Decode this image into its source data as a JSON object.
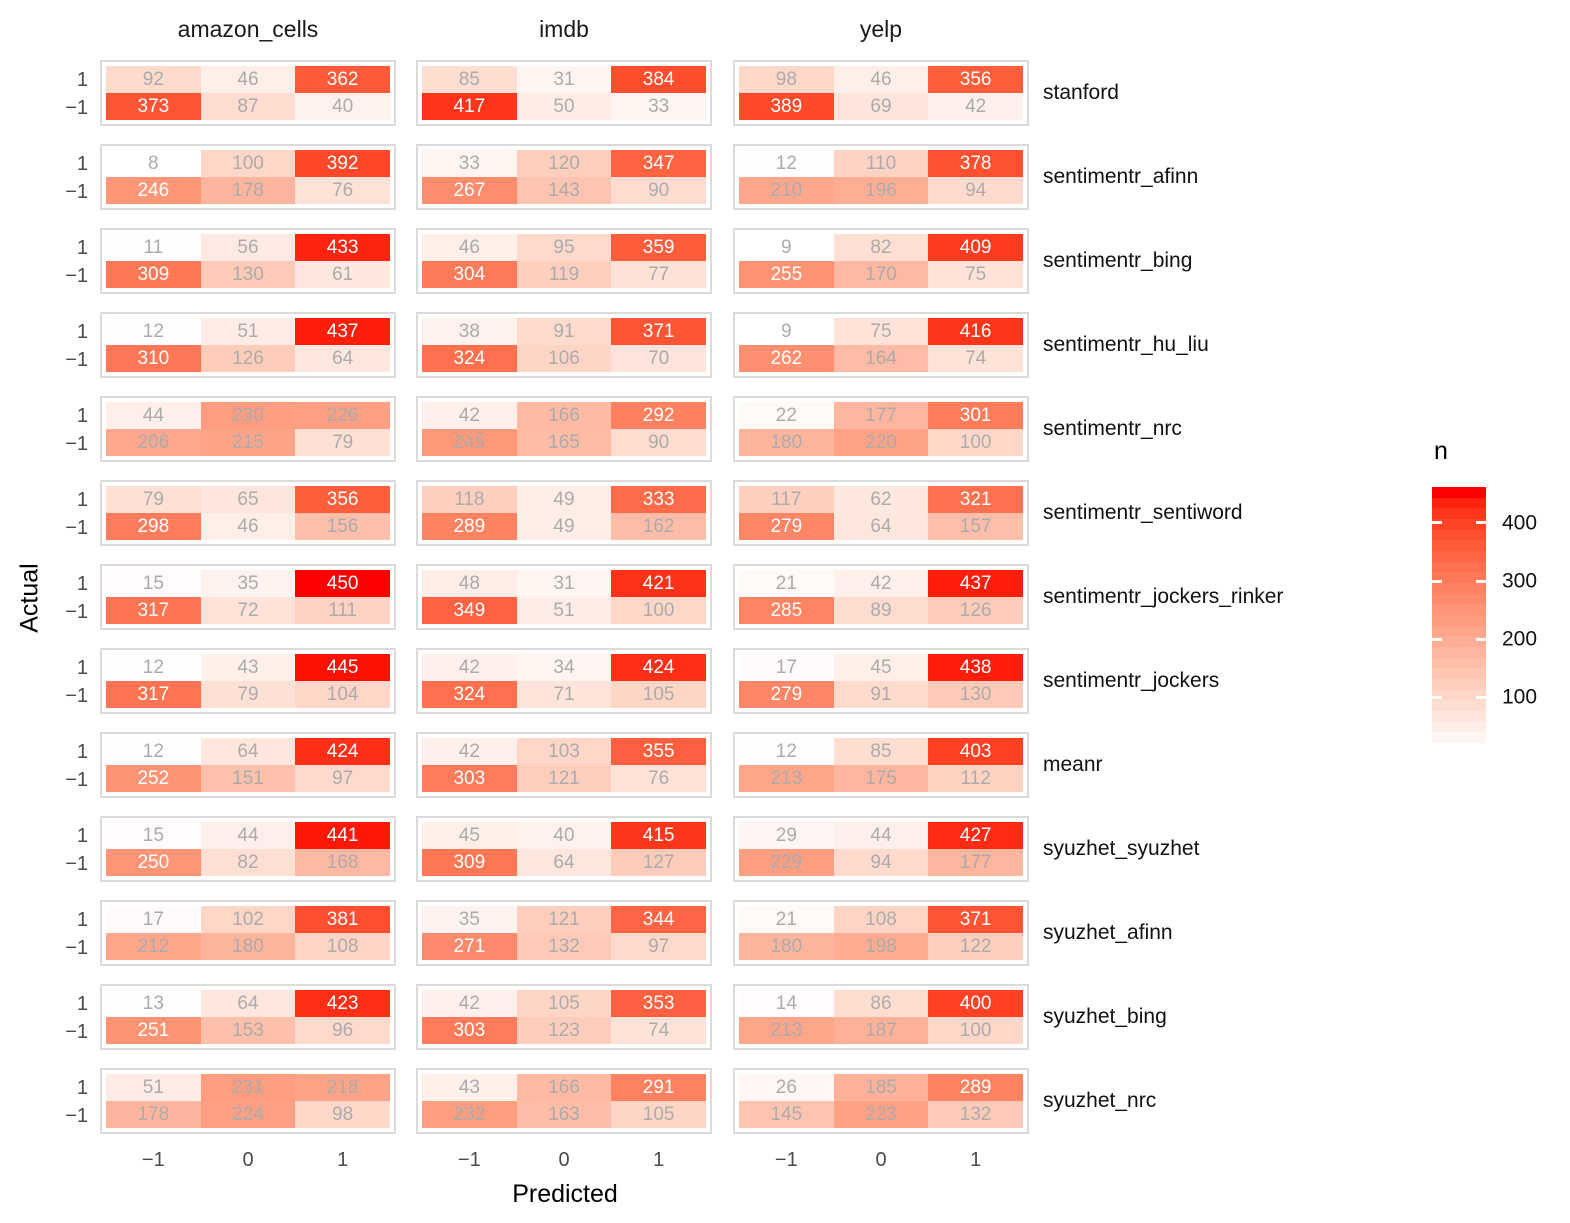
{
  "figure": {
    "x_axis_title": "Predicted",
    "y_axis_title": "Actual",
    "legend_title": "n"
  },
  "axes": {
    "x_ticks": [
      "−1",
      "0",
      "1"
    ],
    "y_ticks": [
      "1",
      "−1"
    ]
  },
  "legend": {
    "title": "n",
    "tick_labels": [
      "400",
      "300",
      "200",
      "100"
    ],
    "tick_values": [
      400,
      300,
      200,
      100
    ],
    "low_color": "#FFFFFF",
    "high_color": "#FF0000"
  },
  "colors": {
    "panel_border": "#DBDBDB",
    "cell_text_gray": "#ABABAB",
    "cell_text_on_dark": "#FFFFFF",
    "tick_text": "#4A4A4A",
    "label_text": "#1A1A1A"
  },
  "chart_data": {
    "type": "heatmap",
    "title": "",
    "xlabel": "Predicted",
    "ylabel": "Actual",
    "fill_legend": "n",
    "legend_ticks": [
      100,
      200,
      300,
      400
    ],
    "fill_domain": [
      8,
      450
    ],
    "facet_columns": [
      "amazon_cells",
      "imdb",
      "yelp"
    ],
    "facet_rows": [
      "stanford",
      "sentimentr_afinn",
      "sentimentr_bing",
      "sentimentr_hu_liu",
      "sentimentr_nrc",
      "sentimentr_sentiword",
      "sentimentr_jockers_rinker",
      "sentimentr_jockers",
      "meanr",
      "syuzhet_syuzhet",
      "syuzhet_afinn",
      "syuzhet_bing",
      "syuzhet_nrc"
    ],
    "x_categories": [
      "-1",
      "0",
      "1"
    ],
    "y_categories": [
      "1",
      "-1"
    ],
    "values": [
      {
        "method": "stanford",
        "amazon_cells": [
          [
            92,
            46,
            362
          ],
          [
            373,
            87,
            40
          ]
        ],
        "imdb": [
          [
            85,
            31,
            384
          ],
          [
            417,
            50,
            33
          ]
        ],
        "yelp": [
          [
            98,
            46,
            356
          ],
          [
            389,
            69,
            42
          ]
        ]
      },
      {
        "method": "sentimentr_afinn",
        "amazon_cells": [
          [
            8,
            100,
            392
          ],
          [
            246,
            178,
            76
          ]
        ],
        "imdb": [
          [
            33,
            120,
            347
          ],
          [
            267,
            143,
            90
          ]
        ],
        "yelp": [
          [
            12,
            110,
            378
          ],
          [
            210,
            196,
            94
          ]
        ]
      },
      {
        "method": "sentimentr_bing",
        "amazon_cells": [
          [
            11,
            56,
            433
          ],
          [
            309,
            130,
            61
          ]
        ],
        "imdb": [
          [
            46,
            95,
            359
          ],
          [
            304,
            119,
            77
          ]
        ],
        "yelp": [
          [
            9,
            82,
            409
          ],
          [
            255,
            170,
            75
          ]
        ]
      },
      {
        "method": "sentimentr_hu_liu",
        "amazon_cells": [
          [
            12,
            51,
            437
          ],
          [
            310,
            126,
            64
          ]
        ],
        "imdb": [
          [
            38,
            91,
            371
          ],
          [
            324,
            106,
            70
          ]
        ],
        "yelp": [
          [
            9,
            75,
            416
          ],
          [
            262,
            164,
            74
          ]
        ]
      },
      {
        "method": "sentimentr_nrc",
        "amazon_cells": [
          [
            44,
            230,
            226
          ],
          [
            206,
            215,
            79
          ]
        ],
        "imdb": [
          [
            42,
            166,
            292
          ],
          [
            245,
            165,
            90
          ]
        ],
        "yelp": [
          [
            22,
            177,
            301
          ],
          [
            180,
            220,
            100
          ]
        ]
      },
      {
        "method": "sentimentr_sentiword",
        "amazon_cells": [
          [
            79,
            65,
            356
          ],
          [
            298,
            46,
            156
          ]
        ],
        "imdb": [
          [
            118,
            49,
            333
          ],
          [
            289,
            49,
            162
          ]
        ],
        "yelp": [
          [
            117,
            62,
            321
          ],
          [
            279,
            64,
            157
          ]
        ]
      },
      {
        "method": "sentimentr_jockers_rinker",
        "amazon_cells": [
          [
            15,
            35,
            450
          ],
          [
            317,
            72,
            111
          ]
        ],
        "imdb": [
          [
            48,
            31,
            421
          ],
          [
            349,
            51,
            100
          ]
        ],
        "yelp": [
          [
            21,
            42,
            437
          ],
          [
            285,
            89,
            126
          ]
        ]
      },
      {
        "method": "sentimentr_jockers",
        "amazon_cells": [
          [
            12,
            43,
            445
          ],
          [
            317,
            79,
            104
          ]
        ],
        "imdb": [
          [
            42,
            34,
            424
          ],
          [
            324,
            71,
            105
          ]
        ],
        "yelp": [
          [
            17,
            45,
            438
          ],
          [
            279,
            91,
            130
          ]
        ]
      },
      {
        "method": "meanr",
        "amazon_cells": [
          [
            12,
            64,
            424
          ],
          [
            252,
            151,
            97
          ]
        ],
        "imdb": [
          [
            42,
            103,
            355
          ],
          [
            303,
            121,
            76
          ]
        ],
        "yelp": [
          [
            12,
            85,
            403
          ],
          [
            213,
            175,
            112
          ]
        ]
      },
      {
        "method": "syuzhet_syuzhet",
        "amazon_cells": [
          [
            15,
            44,
            441
          ],
          [
            250,
            82,
            168
          ]
        ],
        "imdb": [
          [
            45,
            40,
            415
          ],
          [
            309,
            64,
            127
          ]
        ],
        "yelp": [
          [
            29,
            44,
            427
          ],
          [
            229,
            94,
            177
          ]
        ]
      },
      {
        "method": "syuzhet_afinn",
        "amazon_cells": [
          [
            17,
            102,
            381
          ],
          [
            212,
            180,
            108
          ]
        ],
        "imdb": [
          [
            35,
            121,
            344
          ],
          [
            271,
            132,
            97
          ]
        ],
        "yelp": [
          [
            21,
            108,
            371
          ],
          [
            180,
            198,
            122
          ]
        ]
      },
      {
        "method": "syuzhet_bing",
        "amazon_cells": [
          [
            13,
            64,
            423
          ],
          [
            251,
            153,
            96
          ]
        ],
        "imdb": [
          [
            42,
            105,
            353
          ],
          [
            303,
            123,
            74
          ]
        ],
        "yelp": [
          [
            14,
            86,
            400
          ],
          [
            213,
            187,
            100
          ]
        ]
      },
      {
        "method": "syuzhet_nrc",
        "amazon_cells": [
          [
            51,
            231,
            218
          ],
          [
            178,
            224,
            98
          ]
        ],
        "imdb": [
          [
            43,
            166,
            291
          ],
          [
            232,
            163,
            105
          ]
        ],
        "yelp": [
          [
            26,
            185,
            289
          ],
          [
            145,
            223,
            132
          ]
        ]
      }
    ]
  }
}
